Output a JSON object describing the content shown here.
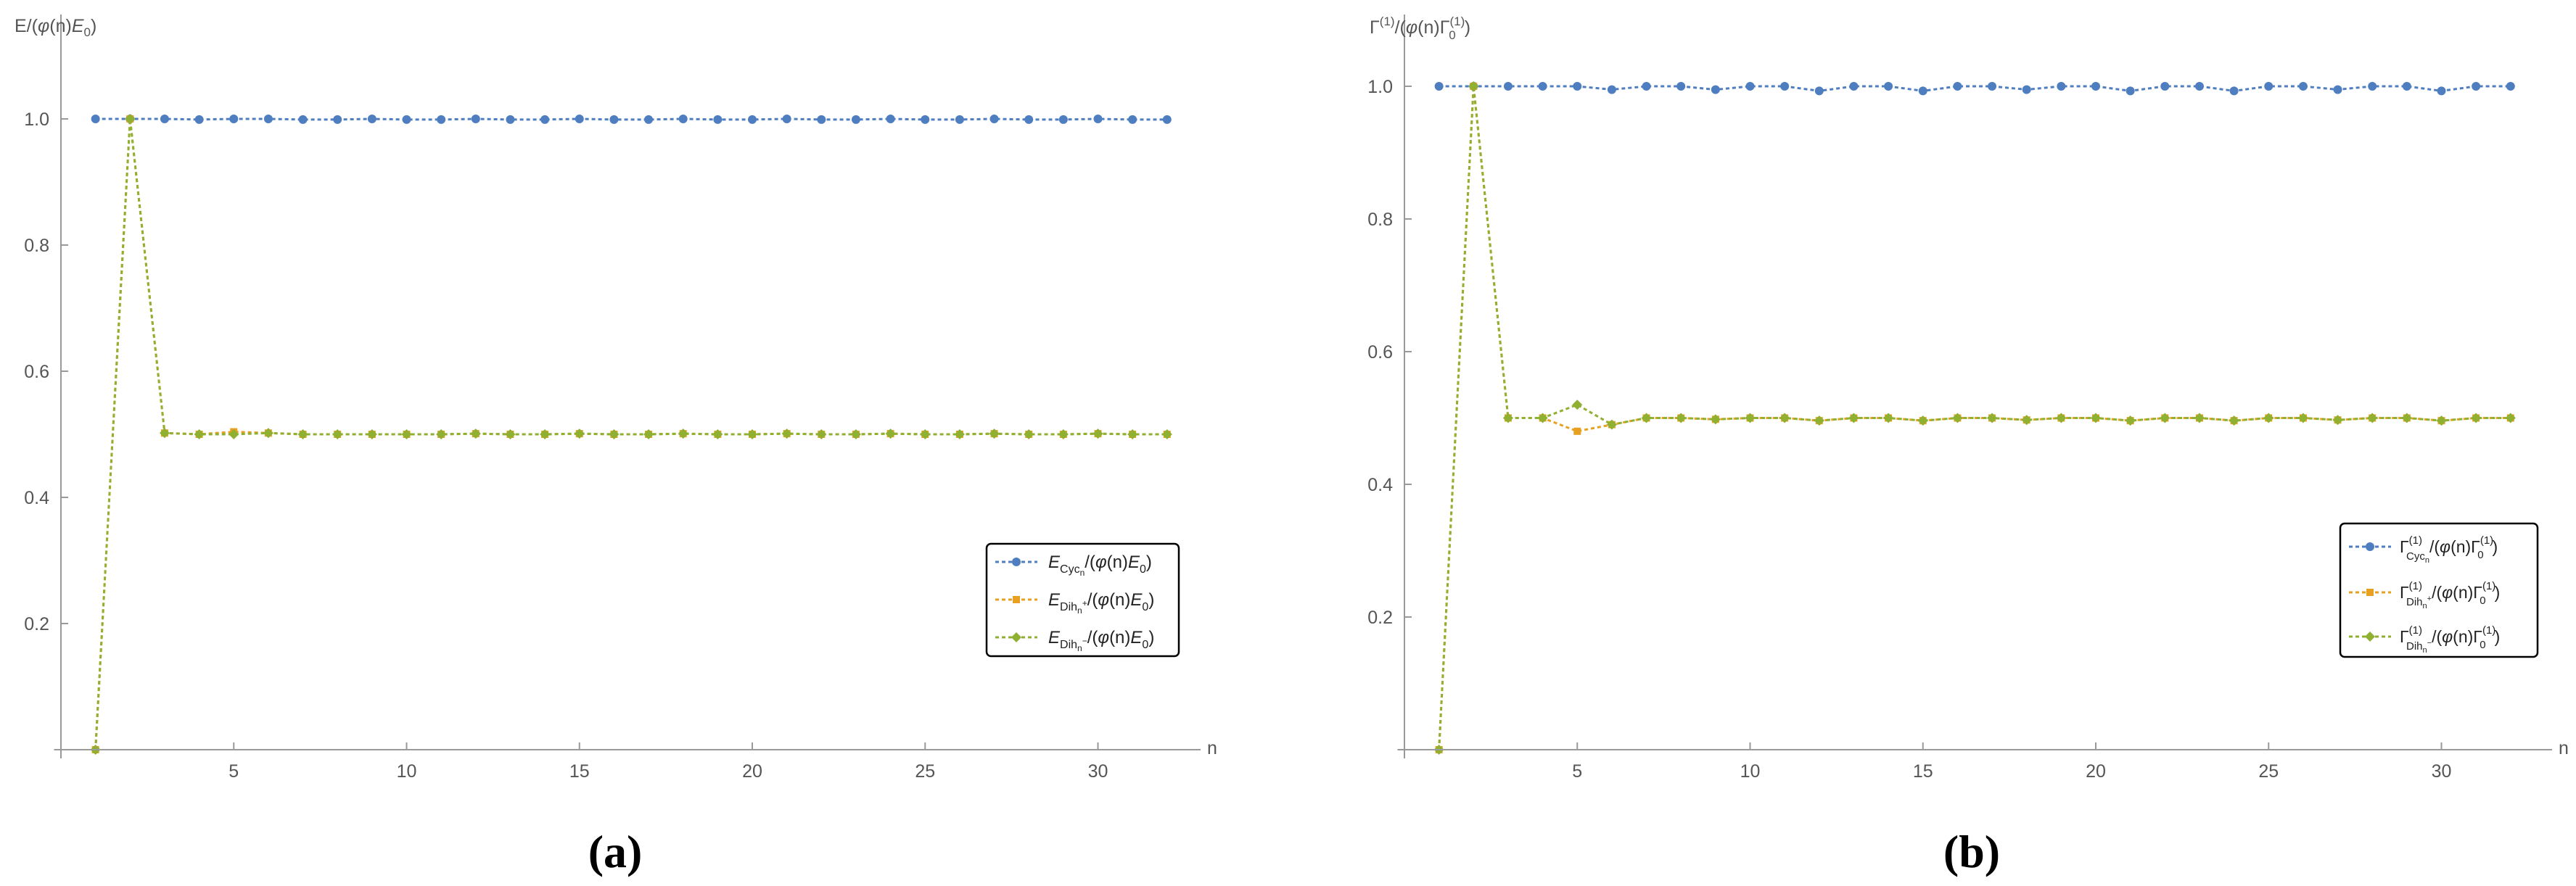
{
  "chart_data": [
    {
      "type": "line",
      "panel_label": "(a)",
      "ylabel": "E/(φ(n)E0)",
      "xlabel": "n",
      "xlim": [
        -0.2,
        33
      ],
      "ylim": [
        0,
        1.05
      ],
      "xticks": [
        5,
        10,
        15,
        20,
        25,
        30
      ],
      "yticks": [
        0.2,
        0.4,
        0.6,
        0.8,
        1.0
      ],
      "grid": false,
      "legend_position": "lower-right",
      "x": [
        1,
        2,
        3,
        4,
        5,
        6,
        7,
        8,
        9,
        10,
        11,
        12,
        13,
        14,
        15,
        16,
        17,
        18,
        19,
        20,
        21,
        22,
        23,
        24,
        25,
        26,
        27,
        28,
        29,
        30,
        31,
        32
      ],
      "series": [
        {
          "name": "E_{Cyc_n}/(φ(n)E_0)",
          "color": "#4f7ec0",
          "marker": "circle",
          "values": [
            1.0,
            1.0,
            1.0,
            0.999,
            1.0,
            1.0,
            0.999,
            0.999,
            1.0,
            0.999,
            0.999,
            1.0,
            0.999,
            0.999,
            1.0,
            0.999,
            0.999,
            1.0,
            0.999,
            0.999,
            1.0,
            0.999,
            0.999,
            1.0,
            0.999,
            0.999,
            1.0,
            0.999,
            0.999,
            1.0,
            0.999,
            0.999
          ]
        },
        {
          "name": "E_{Dih_n^+}/(φ(n)E_0)",
          "color": "#e8a020",
          "marker": "square",
          "values": [
            0.0,
            1.0,
            0.502,
            0.5,
            0.504,
            0.502,
            0.5,
            0.5,
            0.5,
            0.5,
            0.5,
            0.501,
            0.5,
            0.5,
            0.501,
            0.5,
            0.5,
            0.501,
            0.5,
            0.5,
            0.501,
            0.5,
            0.5,
            0.501,
            0.5,
            0.5,
            0.501,
            0.5,
            0.5,
            0.501,
            0.5,
            0.5
          ]
        },
        {
          "name": "E_{Dih_n^-}/(φ(n)E_0)",
          "color": "#8fb030",
          "marker": "diamond",
          "values": [
            0.0,
            1.0,
            0.502,
            0.5,
            0.5,
            0.502,
            0.5,
            0.5,
            0.5,
            0.5,
            0.5,
            0.501,
            0.5,
            0.5,
            0.501,
            0.5,
            0.5,
            0.501,
            0.5,
            0.5,
            0.501,
            0.5,
            0.5,
            0.501,
            0.5,
            0.5,
            0.501,
            0.5,
            0.5,
            0.501,
            0.5,
            0.5
          ]
        }
      ]
    },
    {
      "type": "line",
      "panel_label": "(b)",
      "ylabel": "Γ(1)/(φ(n)Γ0(1))",
      "xlabel": "n",
      "xlim": [
        -0.2,
        33
      ],
      "ylim": [
        0,
        1.04
      ],
      "xticks": [
        5,
        10,
        15,
        20,
        25,
        30
      ],
      "yticks": [
        0.2,
        0.4,
        0.6,
        0.8,
        1.0
      ],
      "grid": false,
      "legend_position": "lower-right",
      "x": [
        1,
        2,
        3,
        4,
        5,
        6,
        7,
        8,
        9,
        10,
        11,
        12,
        13,
        14,
        15,
        16,
        17,
        18,
        19,
        20,
        21,
        22,
        23,
        24,
        25,
        26,
        27,
        28,
        29,
        30,
        31,
        32
      ],
      "series": [
        {
          "name": "Γ^{(1)}_{Cyc_n}/(φ(n)Γ_0^{(1)})",
          "color": "#4f7ec0",
          "marker": "circle",
          "values": [
            1.0,
            1.0,
            1.0,
            1.0,
            1.0,
            0.995,
            1.0,
            1.0,
            0.995,
            1.0,
            1.0,
            0.993,
            1.0,
            1.0,
            0.993,
            1.0,
            1.0,
            0.995,
            1.0,
            1.0,
            0.993,
            1.0,
            1.0,
            0.993,
            1.0,
            1.0,
            0.995,
            1.0,
            1.0,
            0.993,
            1.0,
            1.0
          ]
        },
        {
          "name": "Γ^{(1)}_{Dih_n^+}/(φ(n)Γ_0^{(1)})",
          "color": "#e8a020",
          "marker": "square",
          "values": [
            0.0,
            1.0,
            0.5,
            0.5,
            0.48,
            0.49,
            0.5,
            0.5,
            0.498,
            0.5,
            0.5,
            0.496,
            0.5,
            0.5,
            0.496,
            0.5,
            0.5,
            0.497,
            0.5,
            0.5,
            0.496,
            0.5,
            0.5,
            0.496,
            0.5,
            0.5,
            0.497,
            0.5,
            0.5,
            0.496,
            0.5,
            0.5
          ]
        },
        {
          "name": "Γ^{(1)}_{Dih_n^-}/(φ(n)Γ_0^{(1)})",
          "color": "#8fb030",
          "marker": "diamond",
          "values": [
            0.0,
            1.0,
            0.5,
            0.5,
            0.52,
            0.49,
            0.5,
            0.5,
            0.498,
            0.5,
            0.5,
            0.496,
            0.5,
            0.5,
            0.496,
            0.5,
            0.5,
            0.497,
            0.5,
            0.5,
            0.496,
            0.5,
            0.5,
            0.496,
            0.5,
            0.5,
            0.497,
            0.5,
            0.5,
            0.496,
            0.5,
            0.5
          ]
        }
      ]
    }
  ]
}
